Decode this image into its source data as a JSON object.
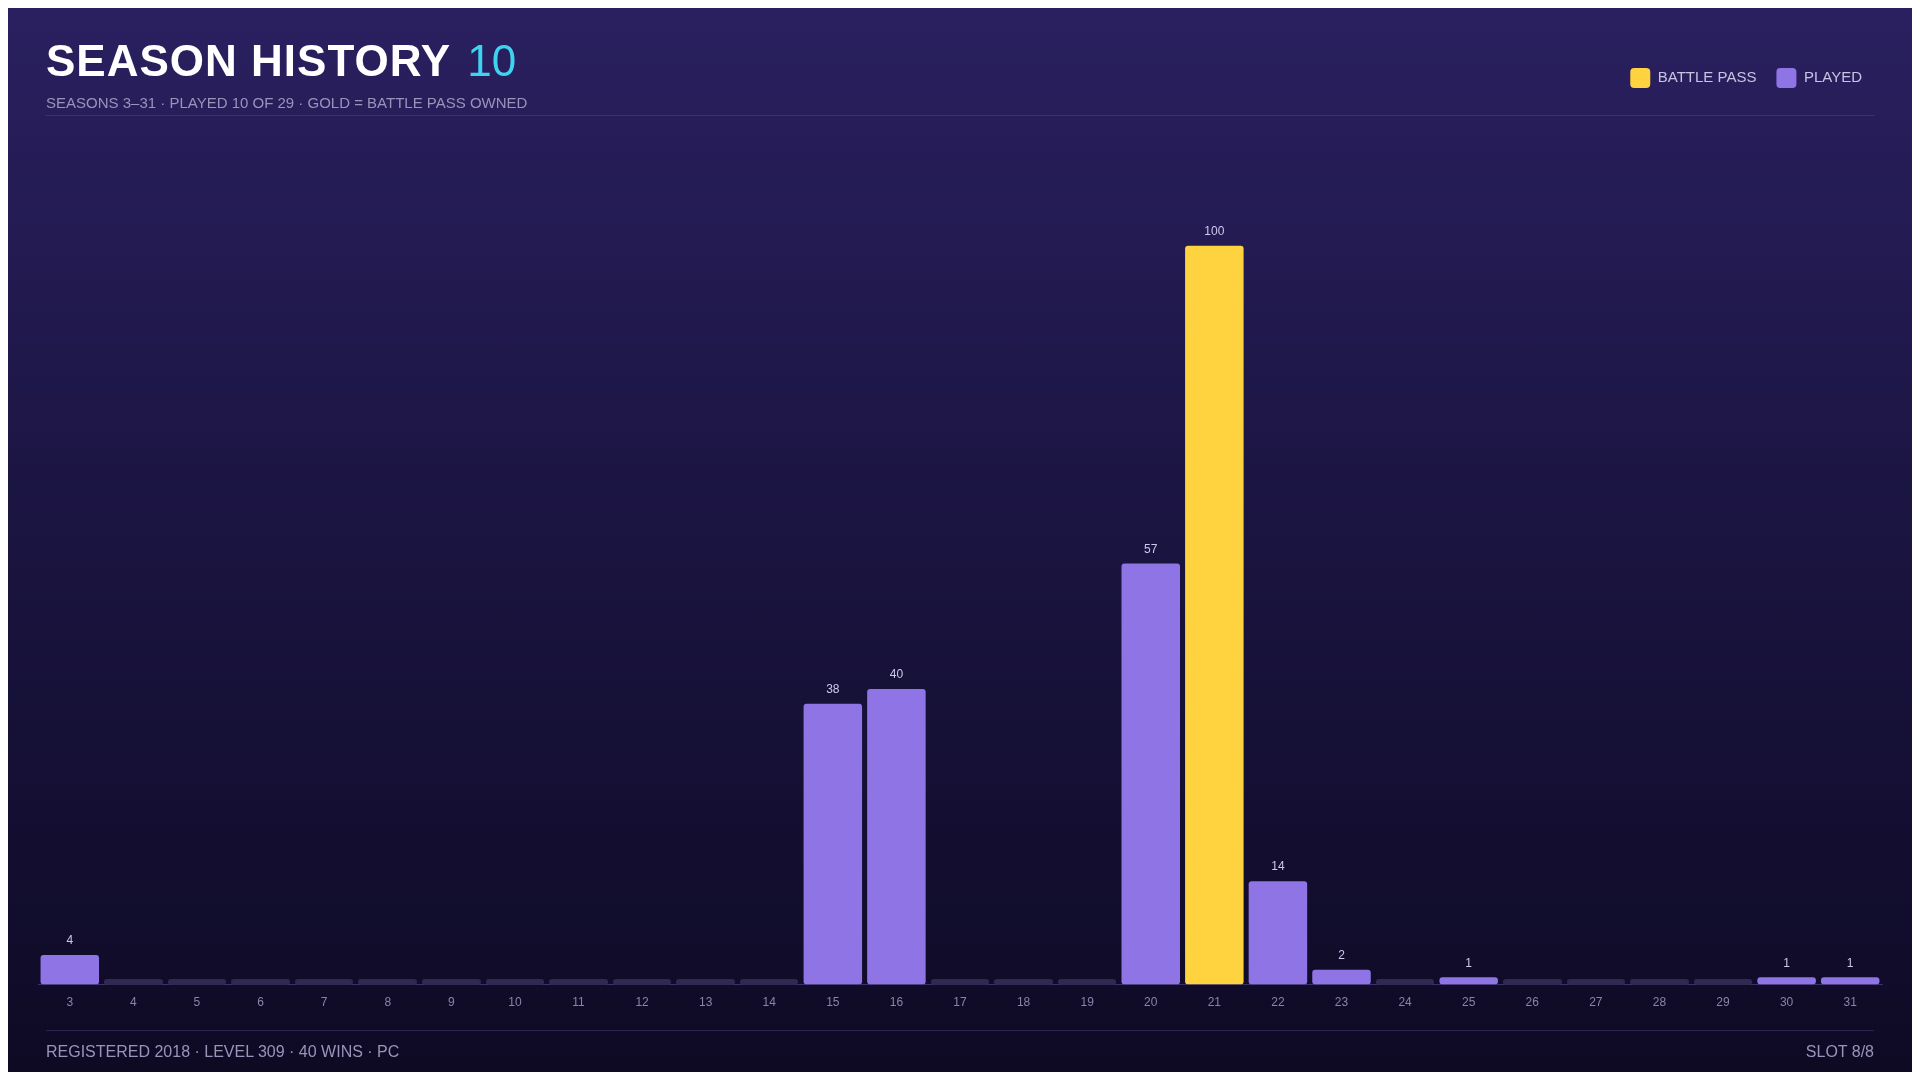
{
  "chart_data": {
    "type": "bar",
    "title": "SEASON HISTORY",
    "subtitle": "SEASONS 3–31 · PLAYED 10 OF 29 · GOLD = BATTLE PASS OWNED",
    "annotations": [
      "10",
      "REGISTERED 2018 · LEVEL 309 · 40 WINS · PC",
      "SLOT 8/8"
    ],
    "categories": [
      "3",
      "4",
      "5",
      "6",
      "7",
      "8",
      "9",
      "10",
      "11",
      "12",
      "13",
      "14",
      "15",
      "16",
      "17",
      "18",
      "19",
      "20",
      "21",
      "22",
      "23",
      "24",
      "25",
      "26",
      "27",
      "28",
      "29",
      "30",
      "31"
    ],
    "legend": "top right",
    "grid": false,
    "series": [
      {
        "name": "BATTLE PASS",
        "color": "#ffd23f",
        "values": [
          null,
          null,
          null,
          null,
          null,
          null,
          null,
          null,
          null,
          null,
          null,
          null,
          null,
          null,
          null,
          null,
          null,
          null,
          100,
          null,
          null,
          null,
          null,
          null,
          null,
          null,
          null,
          null,
          null
        ],
        "value_labels": [
          null,
          null,
          null,
          null,
          null,
          null,
          null,
          null,
          null,
          null,
          null,
          null,
          null,
          null,
          null,
          null,
          null,
          null,
          "100",
          null,
          null,
          null,
          null,
          null,
          null,
          null,
          null,
          null,
          null
        ]
      },
      {
        "name": "PLAYED",
        "color": "#8f74e6",
        "values": [
          4,
          0,
          0,
          0,
          0,
          0,
          0,
          0,
          0,
          0,
          0,
          0,
          38,
          40,
          0,
          0,
          0,
          57,
          null,
          14,
          2,
          0,
          1,
          0,
          0,
          0,
          0,
          1,
          1
        ],
        "value_labels": [
          "4",
          null,
          null,
          null,
          null,
          null,
          null,
          null,
          null,
          null,
          null,
          null,
          "38",
          "40",
          null,
          null,
          null,
          "57",
          null,
          "14",
          "2",
          null,
          "1",
          null,
          null,
          null,
          null,
          "1",
          "1"
        ]
      }
    ]
  }
}
